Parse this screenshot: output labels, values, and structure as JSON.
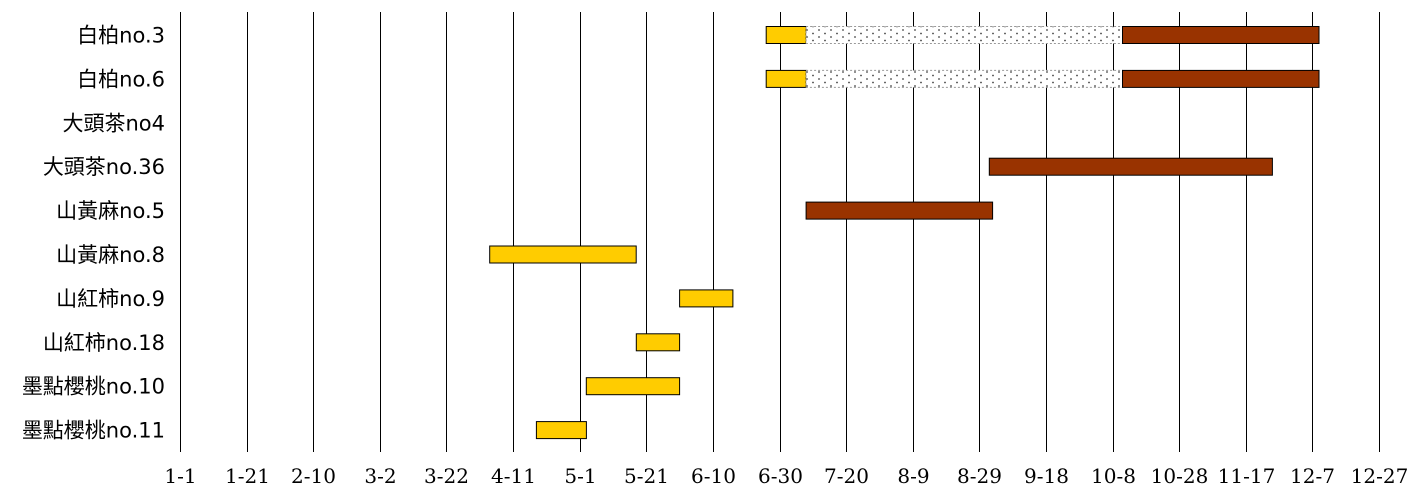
{
  "chart_data": {
    "type": "gantt",
    "title": "",
    "xlabel": "",
    "ylabel": "",
    "grid": "vertical",
    "x_ticks": [
      "1-1",
      "1-21",
      "2-10",
      "3-2",
      "3-22",
      "4-11",
      "5-1",
      "5-21",
      "6-10",
      "6-30",
      "7-20",
      "8-9",
      "8-29",
      "9-18",
      "10-8",
      "10-28",
      "11-17",
      "12-7",
      "12-27"
    ],
    "x_range_days": [
      1,
      361
    ],
    "colors": {
      "yellow": "#ffcc00",
      "brown": "#993300",
      "dotted": "#ffffff"
    },
    "rows": [
      {
        "label": "白柏no.3",
        "bars": [
          {
            "start": "6-26",
            "end": "7-8",
            "kind": "yellow"
          },
          {
            "start": "7-8",
            "end": "10-11",
            "kind": "dotted"
          },
          {
            "start": "10-11",
            "end": "12-9",
            "kind": "brown"
          }
        ]
      },
      {
        "label": "白柏no.6",
        "bars": [
          {
            "start": "6-26",
            "end": "7-8",
            "kind": "yellow"
          },
          {
            "start": "7-8",
            "end": "10-11",
            "kind": "dotted"
          },
          {
            "start": "10-11",
            "end": "12-9",
            "kind": "brown"
          }
        ]
      },
      {
        "label": "大頭茶no4",
        "bars": []
      },
      {
        "label": "大頭茶no.36",
        "bars": [
          {
            "start": "9-1",
            "end": "11-25",
            "kind": "brown"
          }
        ]
      },
      {
        "label": "山黃麻no.5",
        "bars": [
          {
            "start": "7-8",
            "end": "9-2",
            "kind": "brown"
          }
        ]
      },
      {
        "label": "山黃麻no.8",
        "bars": [
          {
            "start": "4-4",
            "end": "5-18",
            "kind": "yellow"
          }
        ]
      },
      {
        "label": "山紅柿no.9",
        "bars": [
          {
            "start": "5-31",
            "end": "6-16",
            "kind": "yellow"
          }
        ]
      },
      {
        "label": "山紅柿no.18",
        "bars": [
          {
            "start": "5-18",
            "end": "5-31",
            "kind": "yellow"
          }
        ]
      },
      {
        "label": "墨點櫻桃no.10",
        "bars": [
          {
            "start": "5-3",
            "end": "5-31",
            "kind": "yellow"
          }
        ]
      },
      {
        "label": "墨點櫻桃no.11",
        "bars": [
          {
            "start": "4-18",
            "end": "5-3",
            "kind": "yellow"
          }
        ]
      }
    ]
  }
}
